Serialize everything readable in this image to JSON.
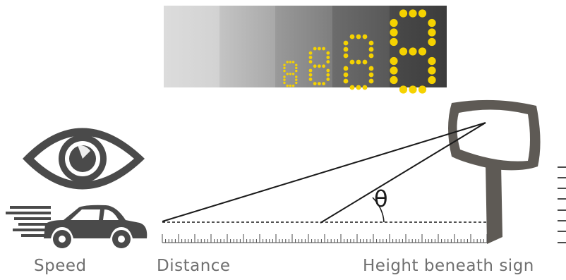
{
  "labels": {
    "speed": "Speed",
    "distance": "Distance",
    "height": "Height beneath sign",
    "angle": "θ"
  },
  "colors": {
    "digit": "#f5d200",
    "icon": "#4a4a4a",
    "sign": "#5e5a55",
    "text": "#6f6f6f"
  },
  "icons": [
    "eye-icon",
    "car-icon",
    "sign-icon",
    "ruler-icon"
  ]
}
